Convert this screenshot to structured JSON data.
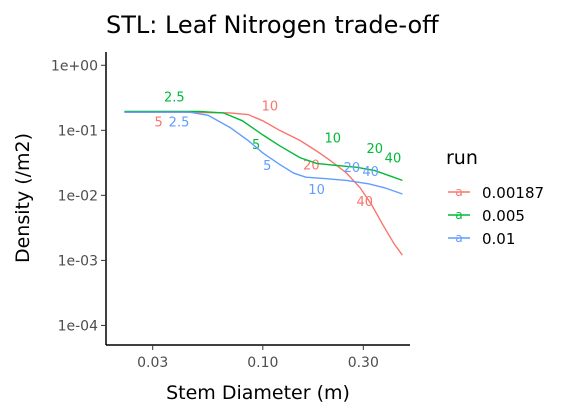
{
  "chart_data": {
    "type": "line",
    "title": "STL: Leaf Nitrogen trade-off",
    "xlabel": "Stem Diameter (m)",
    "ylabel": "Density (/m2)",
    "x_scale": "log10",
    "y_scale": "log10",
    "xlim": [
      0.018,
      0.5
    ],
    "ylim": [
      5e-05,
      1.6
    ],
    "x_ticks": [
      {
        "value": 0.03,
        "label": "0.03"
      },
      {
        "value": 0.1,
        "label": "0.10"
      },
      {
        "value": 0.3,
        "label": "0.30"
      }
    ],
    "y_ticks": [
      {
        "value": 0.0001,
        "label": "1e-04"
      },
      {
        "value": 0.001,
        "label": "1e-03"
      },
      {
        "value": 0.01,
        "label": "1e-02"
      },
      {
        "value": 0.1,
        "label": "1e-01"
      },
      {
        "value": 1,
        "label": "1e+00"
      }
    ],
    "grid": false,
    "legend": {
      "title": "run",
      "placement": "right"
    },
    "series": [
      {
        "name": "0.00187",
        "color": "#F8766D",
        "points": [
          [
            0.022,
            0.19
          ],
          [
            0.04,
            0.19
          ],
          [
            0.07,
            0.185
          ],
          [
            0.085,
            0.175
          ],
          [
            0.1,
            0.14
          ],
          [
            0.12,
            0.1
          ],
          [
            0.15,
            0.07
          ],
          [
            0.18,
            0.048
          ],
          [
            0.21,
            0.034
          ],
          [
            0.25,
            0.022
          ],
          [
            0.29,
            0.013
          ],
          [
            0.33,
            0.007
          ],
          [
            0.37,
            0.0036
          ],
          [
            0.42,
            0.0018
          ],
          [
            0.46,
            0.0012
          ]
        ],
        "annotations": [
          {
            "text": "5",
            "x": 0.032,
            "y": 0.115
          },
          {
            "text": "10",
            "x": 0.108,
            "y": 0.2
          },
          {
            "text": "20",
            "x": 0.17,
            "y": 0.025
          },
          {
            "text": "40",
            "x": 0.305,
            "y": 0.0068
          }
        ]
      },
      {
        "name": "0.005",
        "color": "#00BA38",
        "points": [
          [
            0.022,
            0.195
          ],
          [
            0.05,
            0.195
          ],
          [
            0.065,
            0.185
          ],
          [
            0.08,
            0.14
          ],
          [
            0.1,
            0.085
          ],
          [
            0.12,
            0.058
          ],
          [
            0.15,
            0.038
          ],
          [
            0.18,
            0.031
          ],
          [
            0.22,
            0.029
          ],
          [
            0.28,
            0.027
          ],
          [
            0.34,
            0.024
          ],
          [
            0.4,
            0.02
          ],
          [
            0.46,
            0.017
          ]
        ],
        "annotations": [
          {
            "text": "2.5",
            "x": 0.038,
            "y": 0.275
          },
          {
            "text": "5",
            "x": 0.093,
            "y": 0.052
          },
          {
            "text": "10",
            "x": 0.215,
            "y": 0.065
          },
          {
            "text": "20",
            "x": 0.34,
            "y": 0.045
          },
          {
            "text": "40",
            "x": 0.415,
            "y": 0.032
          }
        ]
      },
      {
        "name": "0.01",
        "color": "#619CFF",
        "points": [
          [
            0.022,
            0.19
          ],
          [
            0.045,
            0.19
          ],
          [
            0.055,
            0.17
          ],
          [
            0.07,
            0.11
          ],
          [
            0.085,
            0.07
          ],
          [
            0.1,
            0.045
          ],
          [
            0.12,
            0.03
          ],
          [
            0.14,
            0.022
          ],
          [
            0.16,
            0.019
          ],
          [
            0.2,
            0.018
          ],
          [
            0.25,
            0.017
          ],
          [
            0.32,
            0.015
          ],
          [
            0.38,
            0.013
          ],
          [
            0.46,
            0.0105
          ]
        ],
        "annotations": [
          {
            "text": "2.5",
            "x": 0.04,
            "y": 0.115
          },
          {
            "text": "5",
            "x": 0.105,
            "y": 0.0245
          },
          {
            "text": "10",
            "x": 0.18,
            "y": 0.0105
          },
          {
            "text": "20",
            "x": 0.265,
            "y": 0.023
          },
          {
            "text": "40",
            "x": 0.325,
            "y": 0.02
          }
        ]
      }
    ]
  }
}
